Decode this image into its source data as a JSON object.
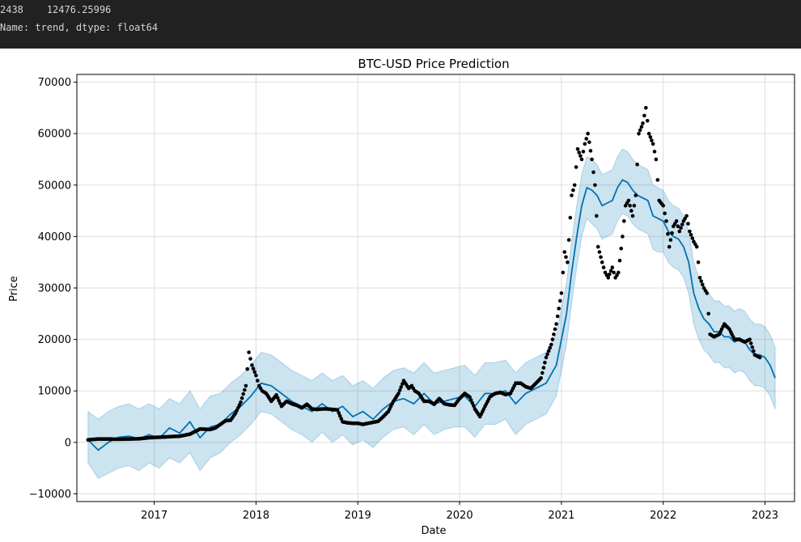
{
  "console": {
    "line1": "2438    12476.25996",
    "line2": "Name: trend, dtype: float64"
  },
  "chart_data": {
    "type": "scatter",
    "title": "BTC-USD Price Prediction",
    "xlabel": "Date",
    "ylabel": "Price",
    "xlim": [
      2016.24,
      2023.29
    ],
    "ylim": [
      -11500,
      71500
    ],
    "grid": true,
    "x_ticks": [
      2017,
      2018,
      2019,
      2020,
      2021,
      2022,
      2023
    ],
    "x_tick_labels": [
      "2017",
      "2018",
      "2019",
      "2020",
      "2021",
      "2022",
      "2023"
    ],
    "y_ticks": [
      -10000,
      0,
      10000,
      20000,
      30000,
      40000,
      50000,
      60000,
      70000
    ],
    "y_tick_labels": [
      "−10000",
      "0",
      "10000",
      "20000",
      "30000",
      "40000",
      "50000",
      "60000",
      "70000"
    ],
    "colors": {
      "actual": "#000000",
      "forecast": "#0072B2",
      "band": "#0072B2"
    },
    "series": [
      {
        "kind": "actual",
        "x": [
          2016.35,
          2016.45,
          2016.55,
          2016.65,
          2016.75,
          2016.85,
          2016.95,
          2017.05,
          2017.15,
          2017.25,
          2017.35,
          2017.45,
          2017.55,
          2017.6,
          2017.65,
          2017.7,
          2017.75,
          2017.8,
          2017.85,
          2017.9,
          2017.93,
          2017.96,
          2018.0,
          2018.03,
          2018.06,
          2018.1,
          2018.15,
          2018.2,
          2018.25,
          2018.3,
          2018.35,
          2018.4,
          2018.45,
          2018.5,
          2018.55,
          2018.6,
          2018.65,
          2018.7,
          2018.75,
          2018.8,
          2018.85,
          2018.9,
          2018.95,
          2019.0,
          2019.05,
          2019.1,
          2019.15,
          2019.2,
          2019.25,
          2019.3,
          2019.35,
          2019.4,
          2019.45,
          2019.5,
          2019.53,
          2019.56,
          2019.6,
          2019.65,
          2019.7,
          2019.75,
          2019.8,
          2019.85,
          2019.9,
          2019.95,
          2020.0,
          2020.05,
          2020.1,
          2020.15,
          2020.2,
          2020.25,
          2020.3,
          2020.35,
          2020.4,
          2020.45,
          2020.5,
          2020.55,
          2020.6,
          2020.65,
          2020.7,
          2020.75,
          2020.8,
          2020.85,
          2020.9,
          2020.95,
          2021.0,
          2021.03,
          2021.06,
          2021.1,
          2021.13,
          2021.16,
          2021.2,
          2021.23,
          2021.26,
          2021.3,
          2021.33,
          2021.36,
          2021.4,
          2021.43,
          2021.46,
          2021.5,
          2021.53,
          2021.56,
          2021.6,
          2021.63,
          2021.66,
          2021.7,
          2021.73,
          2021.76,
          2021.8,
          2021.83,
          2021.86,
          2021.9,
          2021.93,
          2021.96,
          2022.0,
          2022.03,
          2022.06,
          2022.1,
          2022.13,
          2022.16,
          2022.2,
          2022.23,
          2022.26,
          2022.3,
          2022.33,
          2022.36,
          2022.4,
          2022.43,
          2022.46,
          2022.5,
          2022.55,
          2022.6,
          2022.65,
          2022.7,
          2022.75,
          2022.8,
          2022.85,
          2022.9,
          2022.95
        ],
        "y": [
          500,
          650,
          650,
          600,
          650,
          700,
          900,
          1000,
          1100,
          1200,
          1600,
          2600,
          2500,
          2800,
          3500,
          4200,
          4300,
          5700,
          7800,
          11000,
          17500,
          15000,
          13000,
          11000,
          10000,
          9500,
          8000,
          9200,
          7000,
          8000,
          7500,
          7200,
          6700,
          7400,
          6500,
          6400,
          6500,
          6500,
          6400,
          6300,
          4000,
          3800,
          3700,
          3700,
          3500,
          3700,
          3900,
          4100,
          5000,
          6000,
          8000,
          9500,
          12000,
          10500,
          11000,
          10000,
          9500,
          8000,
          8000,
          7400,
          8500,
          7500,
          7300,
          7200,
          8500,
          9500,
          8800,
          6500,
          5000,
          7000,
          8900,
          9500,
          9700,
          9300,
          9500,
          11500,
          11500,
          10800,
          10500,
          11500,
          12500,
          16500,
          19000,
          23000,
          29000,
          37000,
          35000,
          48000,
          50000,
          57000,
          55000,
          58000,
          60000,
          55000,
          50000,
          38000,
          35000,
          33000,
          32000,
          34000,
          32000,
          33000,
          40000,
          46000,
          47000,
          44000,
          48000,
          60000,
          62000,
          65000,
          60000,
          58000,
          55000,
          47000,
          46000,
          43000,
          38000,
          42000,
          43000,
          41000,
          43000,
          44000,
          41000,
          39000,
          38000,
          32000,
          30000,
          29000,
          21000,
          20500,
          21000,
          23000,
          22000,
          20000,
          20000,
          19500,
          20000,
          17000,
          16500
        ]
      },
      {
        "kind": "forecast",
        "x": [
          2016.35,
          2016.45,
          2016.55,
          2016.65,
          2016.75,
          2016.85,
          2016.95,
          2017.05,
          2017.15,
          2017.25,
          2017.35,
          2017.45,
          2017.55,
          2017.65,
          2017.75,
          2017.85,
          2017.95,
          2018.05,
          2018.15,
          2018.25,
          2018.35,
          2018.45,
          2018.55,
          2018.65,
          2018.75,
          2018.85,
          2018.95,
          2019.05,
          2019.15,
          2019.25,
          2019.35,
          2019.45,
          2019.55,
          2019.65,
          2019.75,
          2019.85,
          2019.95,
          2020.05,
          2020.15,
          2020.25,
          2020.35,
          2020.45,
          2020.55,
          2020.65,
          2020.75,
          2020.85,
          2020.95,
          2021.0,
          2021.05,
          2021.1,
          2021.15,
          2021.2,
          2021.25,
          2021.3,
          2021.35,
          2021.4,
          2021.45,
          2021.5,
          2021.55,
          2021.6,
          2021.65,
          2021.7,
          2021.75,
          2021.8,
          2021.85,
          2021.9,
          2021.95,
          2022.0,
          2022.05,
          2022.1,
          2022.15,
          2022.2,
          2022.25,
          2022.3,
          2022.35,
          2022.4,
          2022.45,
          2022.5,
          2022.55,
          2022.6,
          2022.65,
          2022.7,
          2022.75,
          2022.8,
          2022.85,
          2022.9,
          2022.95,
          2023.0,
          2023.05,
          2023.1
        ],
        "y": [
          500,
          -1500,
          0,
          1000,
          1200,
          700,
          1500,
          800,
          2800,
          1800,
          4000,
          900,
          3000,
          3500,
          5500,
          7000,
          9000,
          11500,
          11000,
          9500,
          8000,
          7000,
          6000,
          7500,
          6000,
          7000,
          5000,
          6000,
          4500,
          6500,
          8000,
          8500,
          7500,
          9500,
          7500,
          8000,
          8500,
          9000,
          7000,
          9500,
          9500,
          10000,
          7500,
          9500,
          10500,
          11500,
          15000,
          20000,
          25000,
          33000,
          40000,
          46000,
          49500,
          49000,
          48000,
          46000,
          46500,
          47000,
          49500,
          51000,
          50500,
          49000,
          48000,
          47500,
          47000,
          44000,
          43500,
          43000,
          41000,
          40000,
          39500,
          38000,
          35000,
          29000,
          26000,
          24000,
          23000,
          21500,
          21500,
          20500,
          20500,
          19500,
          20000,
          19500,
          18000,
          17000,
          17000,
          16500,
          15000,
          12500
        ]
      },
      {
        "kind": "uncertainty",
        "x": [
          2016.35,
          2016.45,
          2016.55,
          2016.65,
          2016.75,
          2016.85,
          2016.95,
          2017.05,
          2017.15,
          2017.25,
          2017.35,
          2017.45,
          2017.55,
          2017.65,
          2017.75,
          2017.85,
          2017.95,
          2018.05,
          2018.15,
          2018.25,
          2018.35,
          2018.45,
          2018.55,
          2018.65,
          2018.75,
          2018.85,
          2018.95,
          2019.05,
          2019.15,
          2019.25,
          2019.35,
          2019.45,
          2019.55,
          2019.65,
          2019.75,
          2019.85,
          2019.95,
          2020.05,
          2020.15,
          2020.25,
          2020.35,
          2020.45,
          2020.55,
          2020.65,
          2020.75,
          2020.85,
          2020.95,
          2021.0,
          2021.05,
          2021.1,
          2021.15,
          2021.2,
          2021.25,
          2021.3,
          2021.35,
          2021.4,
          2021.45,
          2021.5,
          2021.55,
          2021.6,
          2021.65,
          2021.7,
          2021.75,
          2021.8,
          2021.85,
          2021.9,
          2021.95,
          2022.0,
          2022.05,
          2022.1,
          2022.15,
          2022.2,
          2022.25,
          2022.3,
          2022.35,
          2022.4,
          2022.45,
          2022.5,
          2022.55,
          2022.6,
          2022.65,
          2022.7,
          2022.75,
          2022.8,
          2022.85,
          2022.9,
          2022.95,
          2023.0,
          2023.05,
          2023.1
        ],
        "lower": [
          -4000,
          -7000,
          -6000,
          -5000,
          -4500,
          -5500,
          -4000,
          -5000,
          -3000,
          -4000,
          -2000,
          -5500,
          -3000,
          -2000,
          0,
          1500,
          3500,
          6000,
          5500,
          4000,
          2500,
          1500,
          0,
          2000,
          0,
          1500,
          -500,
          500,
          -1000,
          1000,
          2500,
          3000,
          1500,
          3500,
          1500,
          2500,
          3000,
          3000,
          1000,
          3500,
          3500,
          4500,
          1500,
          3500,
          4500,
          5500,
          9000,
          14000,
          19000,
          27000,
          34000,
          40000,
          43500,
          42500,
          41500,
          39500,
          40000,
          40500,
          43000,
          44500,
          44000,
          42500,
          41500,
          41000,
          40500,
          37500,
          37000,
          37000,
          35000,
          34000,
          33500,
          32000,
          29000,
          23000,
          20000,
          18000,
          17000,
          15500,
          15500,
          14500,
          14500,
          13500,
          14000,
          13500,
          12000,
          11000,
          11000,
          10500,
          9000,
          6500
        ],
        "upper": [
          6000,
          4500,
          6000,
          7000,
          7500,
          6500,
          7500,
          6500,
          8500,
          7500,
          10000,
          6500,
          9000,
          9500,
          11500,
          13000,
          15000,
          17500,
          17000,
          15500,
          14000,
          13000,
          12000,
          13500,
          12000,
          13000,
          11000,
          12000,
          10500,
          12500,
          14000,
          14500,
          13500,
          15500,
          13500,
          14000,
          14500,
          15000,
          13000,
          15500,
          15500,
          16000,
          13500,
          15500,
          16500,
          17500,
          21000,
          26000,
          31000,
          39000,
          46000,
          52000,
          55500,
          55000,
          54000,
          52000,
          52500,
          53000,
          55500,
          57000,
          56500,
          55000,
          54000,
          53500,
          53000,
          50000,
          49500,
          49000,
          47000,
          46000,
          45500,
          44000,
          41000,
          35000,
          32000,
          30000,
          29000,
          27500,
          27500,
          26500,
          26500,
          25500,
          26000,
          25500,
          24000,
          23000,
          23000,
          22500,
          21000,
          18500
        ]
      }
    ]
  }
}
